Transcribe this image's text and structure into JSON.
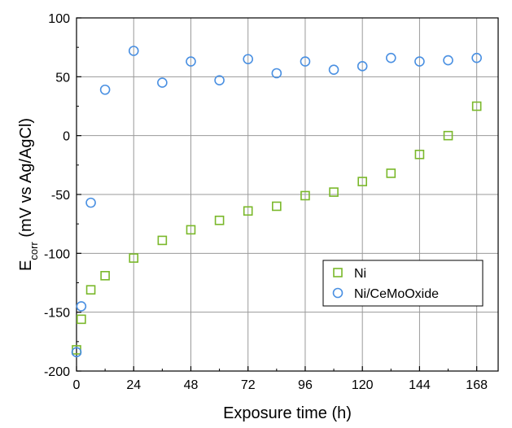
{
  "chart_data": {
    "type": "scatter",
    "title": "",
    "xlabel": "Exposure time (h)",
    "ylabel": {
      "main": "E",
      "subscript": "corr",
      "rest": " (mV vs Ag/AgCl)"
    },
    "xlim": [
      0,
      177
    ],
    "ylim": [
      -200,
      100
    ],
    "xticks": [
      0,
      24,
      48,
      72,
      96,
      120,
      144,
      168
    ],
    "yticks": [
      -200,
      -150,
      -100,
      -50,
      0,
      50,
      100
    ],
    "grid": true,
    "legend_position": "lower-right",
    "series": [
      {
        "name": "Ni",
        "marker": "square",
        "color": "#7ab82a",
        "x": [
          0,
          2,
          6,
          12,
          24,
          36,
          48,
          60,
          72,
          84,
          96,
          108,
          120,
          132,
          144,
          156,
          168
        ],
        "y": [
          -182,
          -156,
          -131,
          -119,
          -104,
          -89,
          -80,
          -72,
          -64,
          -60,
          -51,
          -48,
          -39,
          -32,
          -16,
          0,
          25
        ]
      },
      {
        "name": "Ni/CeMoOxide",
        "marker": "circle",
        "color": "#4a90e2",
        "x": [
          0,
          2,
          6,
          12,
          24,
          36,
          48,
          60,
          72,
          84,
          96,
          108,
          120,
          132,
          144,
          156,
          168
        ],
        "y": [
          -184,
          -145,
          -57,
          39,
          72,
          45,
          63,
          47,
          65,
          53,
          63,
          56,
          59,
          66,
          63,
          64,
          66
        ]
      }
    ]
  }
}
